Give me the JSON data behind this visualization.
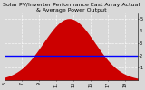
{
  "title": "Solar PV/Inverter Performance East Array Actual & Average Power Output",
  "bg_color": "#d8d8d8",
  "plot_bg_color": "#d8d8d8",
  "bar_color": "#cc0000",
  "avg_line_color": "#0000ff",
  "grid_color": "#ffffff",
  "num_points": 300,
  "peak_hour": 12.5,
  "sigma_hours": 3.0,
  "peak_kw": 5.0,
  "avg_kw": 2.0,
  "start_hour": 5.0,
  "end_hour": 20.5,
  "ylim": [
    0,
    5.5
  ],
  "ytick_values": [
    1,
    2,
    3,
    4,
    5
  ],
  "ytick_labels": [
    "1",
    "2",
    "3",
    "4",
    "5"
  ],
  "xtick_hours": [
    5,
    7,
    9,
    11,
    13,
    15,
    17,
    19
  ],
  "title_fontsize": 4.5,
  "tick_fontsize": 3.5
}
